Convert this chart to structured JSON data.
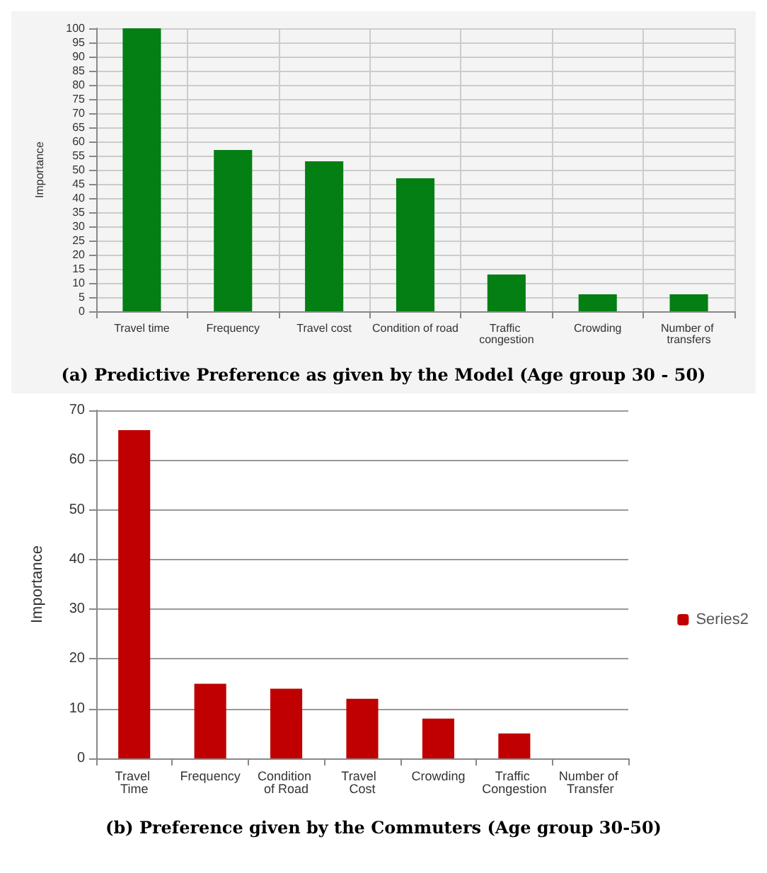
{
  "chart_data": [
    {
      "type": "bar",
      "title": "(a) Predictive Preference as given by the Model (Age group 30 - 50)",
      "ylabel": "Importance",
      "categories": [
        "Travel time",
        "Frequency",
        "Travel cost",
        "Condition of road",
        "Traffic congestion",
        "Crowding",
        "Number of transfers"
      ],
      "series": [
        {
          "color": "#047f14",
          "values": [
            100,
            57,
            53,
            47,
            13,
            6,
            6
          ]
        }
      ],
      "ylim": [
        0,
        100
      ],
      "yticks": [
        0,
        5,
        10,
        15,
        20,
        25,
        30,
        35,
        40,
        45,
        50,
        55,
        60,
        65,
        70,
        75,
        80,
        85,
        90,
        95,
        100
      ],
      "grid": true,
      "legend": false
    },
    {
      "type": "bar",
      "title": "(b) Preference given by the Commuters (Age group 30-50)",
      "ylabel": "Importance",
      "categories": [
        "Travel Time",
        "Frequency",
        "Condition of Road",
        "Travel  Cost",
        "Crowding",
        "Traffic Congestion",
        "Number of Transfer"
      ],
      "series": [
        {
          "name": "Series2",
          "color": "#c00000",
          "values": [
            66,
            15,
            14,
            12,
            8,
            5,
            0
          ]
        }
      ],
      "ylim": [
        0,
        70
      ],
      "yticks": [
        0,
        10,
        20,
        30,
        40,
        50,
        60,
        70
      ],
      "grid": "y",
      "legend": "right"
    }
  ]
}
